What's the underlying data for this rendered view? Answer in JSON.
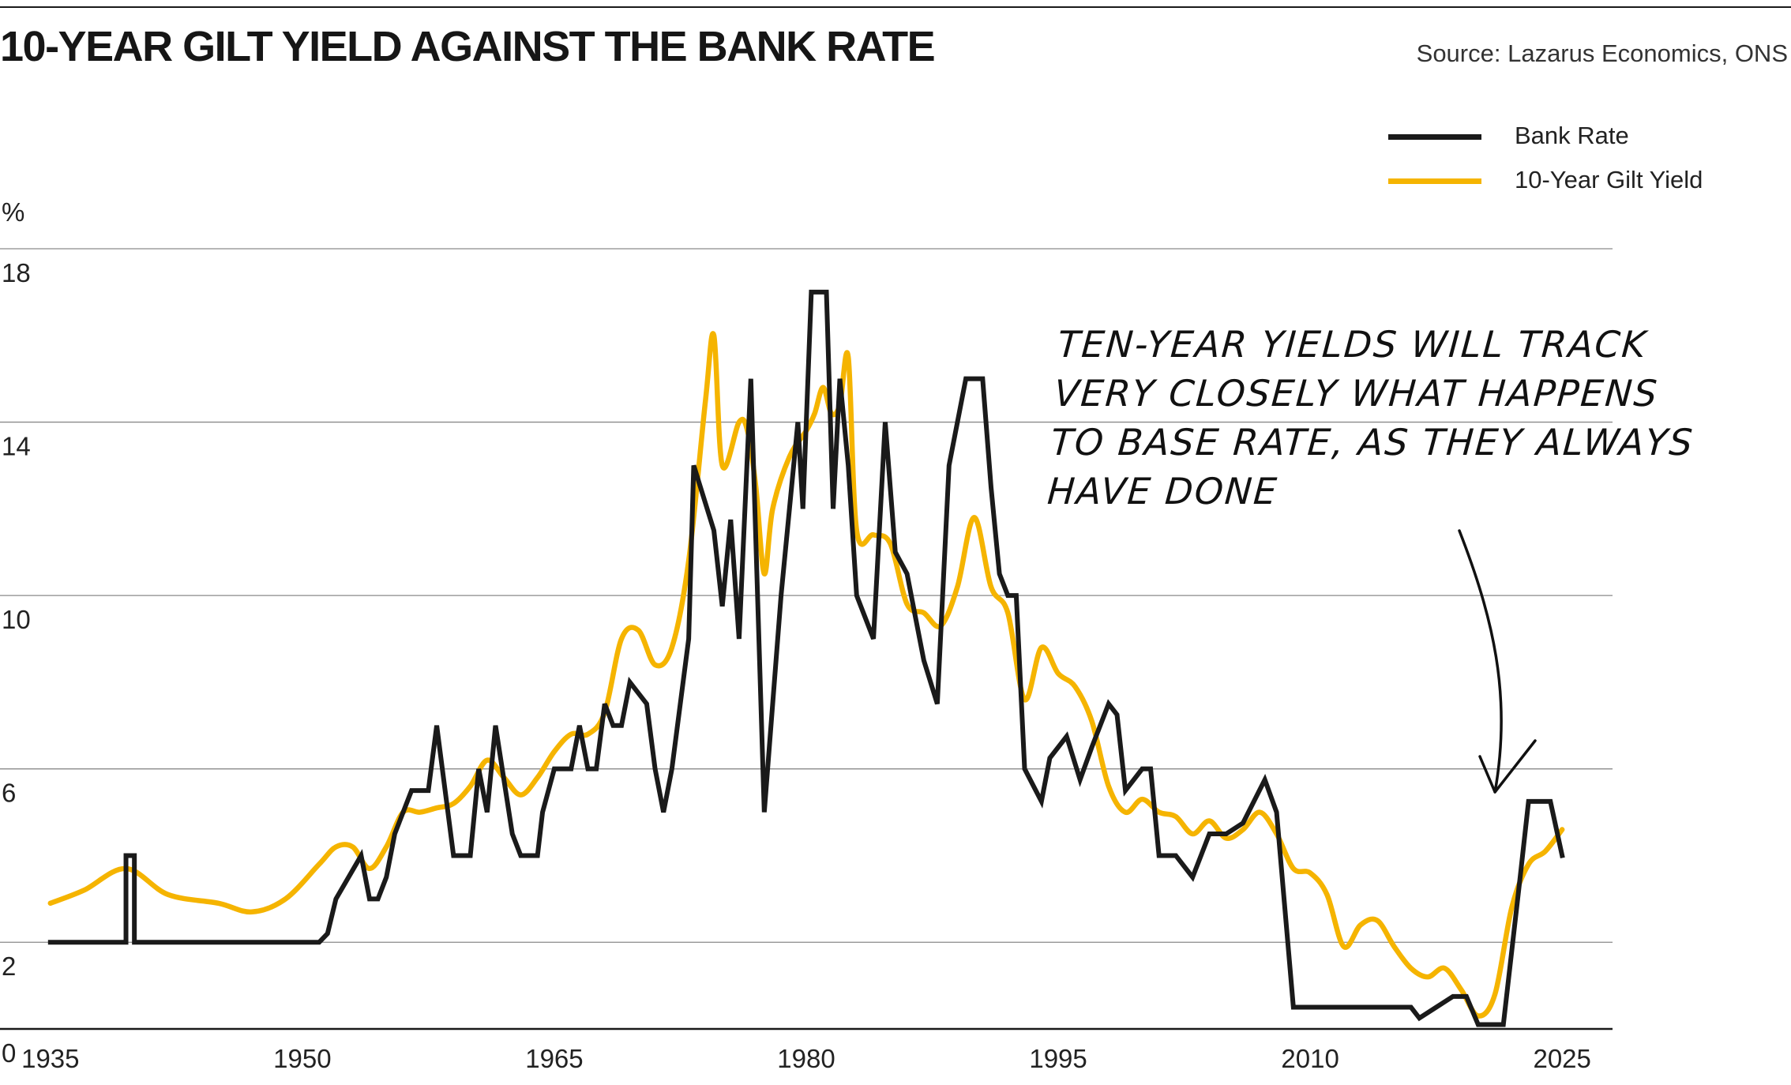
{
  "title": "10-YEAR GILT YIELD AGAINST THE BANK RATE",
  "source": "Source: Lazarus Economics, ONS",
  "unit": "%",
  "legend": {
    "bank_rate": "Bank Rate",
    "gilt_yield": "10-Year Gilt Yield"
  },
  "annotation": {
    "lines": [
      "TEN-YEAR YIELDS WILL TRACK",
      "VERY CLOSELY WHAT HAPPENS",
      "TO BASE RATE, AS THEY ALWAYS",
      "HAVE DONE"
    ],
    "points_to_year": 2021
  },
  "colors": {
    "bank_rate": "#1a1a1a",
    "gilt_yield": "#f5b400",
    "grid": "#8a8a8a",
    "axis": "#1a1a1a"
  },
  "chart_data": {
    "type": "line",
    "ylim": [
      0,
      18
    ],
    "xlim": [
      1932,
      2028
    ],
    "yticks": [
      0,
      2,
      6,
      10,
      14,
      18
    ],
    "xticks": [
      1935,
      1950,
      1965,
      1980,
      1995,
      2010,
      2025
    ],
    "grid": true,
    "legend_position": "top-right",
    "series": [
      {
        "name": "Bank Rate",
        "key": "bank_rate",
        "points": [
          [
            1935,
            2.0
          ],
          [
            1939.5,
            2.0
          ],
          [
            1939.5,
            4.0
          ],
          [
            1940,
            4.0
          ],
          [
            1940,
            2.0
          ],
          [
            1946,
            2.0
          ],
          [
            1951,
            2.0
          ],
          [
            1951.5,
            2.2
          ],
          [
            1952,
            3.0
          ],
          [
            1953.5,
            4.0
          ],
          [
            1954,
            3.0
          ],
          [
            1954.5,
            3.0
          ],
          [
            1955,
            3.5
          ],
          [
            1955.5,
            4.5
          ],
          [
            1956.5,
            5.5
          ],
          [
            1957.5,
            5.5
          ],
          [
            1958,
            7.0
          ],
          [
            1959,
            4.0
          ],
          [
            1960,
            4.0
          ],
          [
            1960.5,
            6.0
          ],
          [
            1961,
            5.0
          ],
          [
            1961.5,
            7.0
          ],
          [
            1962.5,
            4.5
          ],
          [
            1963,
            4.0
          ],
          [
            1964,
            4.0
          ],
          [
            1964.3,
            5.0
          ],
          [
            1965,
            6.0
          ],
          [
            1966,
            6.0
          ],
          [
            1966.5,
            7.0
          ],
          [
            1967,
            6.0
          ],
          [
            1967.5,
            6.0
          ],
          [
            1968,
            7.5
          ],
          [
            1968.5,
            7.0
          ],
          [
            1969,
            7.0
          ],
          [
            1969.5,
            8.0
          ],
          [
            1970.5,
            7.5
          ],
          [
            1971,
            6.0
          ],
          [
            1971.5,
            5.0
          ],
          [
            1972,
            6.0
          ],
          [
            1972.5,
            7.5
          ],
          [
            1973,
            9.0
          ],
          [
            1973.3,
            13.0
          ],
          [
            1974.5,
            11.5
          ],
          [
            1975,
            9.75
          ],
          [
            1975.5,
            11.75
          ],
          [
            1976,
            9.0
          ],
          [
            1976.7,
            15.0
          ],
          [
            1977.5,
            5.0
          ],
          [
            1978.5,
            10.0
          ],
          [
            1979,
            12.0
          ],
          [
            1979.5,
            14.0
          ],
          [
            1979.8,
            12.0
          ],
          [
            1980.3,
            17.0
          ],
          [
            1981.2,
            17.0
          ],
          [
            1981.6,
            12.0
          ],
          [
            1982,
            15.0
          ],
          [
            1982.5,
            13.0
          ],
          [
            1983,
            10.0
          ],
          [
            1984,
            9.0
          ],
          [
            1984.7,
            14.0
          ],
          [
            1985.3,
            11.0
          ],
          [
            1986,
            10.5
          ],
          [
            1987,
            8.5
          ],
          [
            1987.8,
            7.5
          ],
          [
            1988.5,
            13.0
          ],
          [
            1989.5,
            15.0
          ],
          [
            1990.5,
            15.0
          ],
          [
            1991,
            12.5
          ],
          [
            1991.5,
            10.5
          ],
          [
            1992,
            10.0
          ],
          [
            1992.5,
            10.0
          ],
          [
            1993,
            6.0
          ],
          [
            1994,
            5.25
          ],
          [
            1994.5,
            6.25
          ],
          [
            1995.5,
            6.75
          ],
          [
            1996.3,
            5.75
          ],
          [
            1997,
            6.5
          ],
          [
            1998,
            7.5
          ],
          [
            1998.5,
            7.25
          ],
          [
            1999,
            5.5
          ],
          [
            2000,
            6.0
          ],
          [
            2000.5,
            6.0
          ],
          [
            2001,
            4.0
          ],
          [
            2002,
            4.0
          ],
          [
            2003,
            3.5
          ],
          [
            2004,
            4.5
          ],
          [
            2005,
            4.5
          ],
          [
            2006,
            4.75
          ],
          [
            2007.3,
            5.75
          ],
          [
            2008,
            5.0
          ],
          [
            2009,
            0.5
          ],
          [
            2016,
            0.5
          ],
          [
            2016.5,
            0.25
          ],
          [
            2017.5,
            0.5
          ],
          [
            2018.5,
            0.75
          ],
          [
            2019.3,
            0.75
          ],
          [
            2020,
            0.1
          ],
          [
            2021.5,
            0.1
          ],
          [
            2022.5,
            3.5
          ],
          [
            2023,
            5.25
          ],
          [
            2024.3,
            5.25
          ],
          [
            2025,
            4.0
          ]
        ]
      },
      {
        "name": "10-Year Gilt Yield",
        "key": "gilt_yield",
        "points": [
          [
            1935,
            2.9
          ],
          [
            1937,
            3.2
          ],
          [
            1939.5,
            3.7
          ],
          [
            1942,
            3.1
          ],
          [
            1945,
            2.9
          ],
          [
            1947,
            2.7
          ],
          [
            1949,
            3.0
          ],
          [
            1951,
            3.8
          ],
          [
            1952,
            4.2
          ],
          [
            1953,
            4.2
          ],
          [
            1954,
            3.7
          ],
          [
            1955,
            4.2
          ],
          [
            1956,
            5.0
          ],
          [
            1957,
            5.0
          ],
          [
            1958,
            5.1
          ],
          [
            1959,
            5.2
          ],
          [
            1960,
            5.6
          ],
          [
            1961,
            6.2
          ],
          [
            1962,
            5.8
          ],
          [
            1963,
            5.4
          ],
          [
            1964,
            5.8
          ],
          [
            1965,
            6.4
          ],
          [
            1966,
            6.8
          ],
          [
            1967,
            6.8
          ],
          [
            1968,
            7.3
          ],
          [
            1969,
            9.0
          ],
          [
            1970,
            9.2
          ],
          [
            1971,
            8.4
          ],
          [
            1972,
            8.8
          ],
          [
            1973,
            10.8
          ],
          [
            1974,
            14.5
          ],
          [
            1974.5,
            16.0
          ],
          [
            1975,
            13.0
          ],
          [
            1976,
            14.0
          ],
          [
            1976.5,
            13.8
          ],
          [
            1977,
            12.5
          ],
          [
            1977.5,
            10.5
          ],
          [
            1978,
            12.0
          ],
          [
            1979,
            13.2
          ],
          [
            1980,
            13.8
          ],
          [
            1980.5,
            14.2
          ],
          [
            1981,
            14.8
          ],
          [
            1981.5,
            14.2
          ],
          [
            1982,
            14.4
          ],
          [
            1982.5,
            15.5
          ],
          [
            1983,
            11.5
          ],
          [
            1984,
            11.4
          ],
          [
            1985,
            11.2
          ],
          [
            1986,
            9.8
          ],
          [
            1987,
            9.6
          ],
          [
            1988,
            9.3
          ],
          [
            1989,
            10.2
          ],
          [
            1990,
            11.8
          ],
          [
            1991,
            10.2
          ],
          [
            1992,
            9.6
          ],
          [
            1993,
            7.6
          ],
          [
            1994,
            8.8
          ],
          [
            1995,
            8.2
          ],
          [
            1996,
            7.9
          ],
          [
            1997,
            7.1
          ],
          [
            1998,
            5.6
          ],
          [
            1999,
            5.0
          ],
          [
            2000,
            5.3
          ],
          [
            2001,
            5.0
          ],
          [
            2002,
            4.9
          ],
          [
            2003,
            4.5
          ],
          [
            2004,
            4.8
          ],
          [
            2005,
            4.4
          ],
          [
            2006,
            4.6
          ],
          [
            2007,
            5.0
          ],
          [
            2008,
            4.5
          ],
          [
            2009,
            3.7
          ],
          [
            2010,
            3.6
          ],
          [
            2011,
            3.1
          ],
          [
            2012,
            1.9
          ],
          [
            2013,
            2.4
          ],
          [
            2014,
            2.5
          ],
          [
            2015,
            1.9
          ],
          [
            2016,
            1.4
          ],
          [
            2017,
            1.2
          ],
          [
            2018,
            1.4
          ],
          [
            2019,
            0.9
          ],
          [
            2020,
            0.3
          ],
          [
            2021,
            0.8
          ],
          [
            2022,
            2.8
          ],
          [
            2023,
            3.8
          ],
          [
            2024,
            4.1
          ],
          [
            2025,
            4.6
          ]
        ]
      }
    ]
  }
}
